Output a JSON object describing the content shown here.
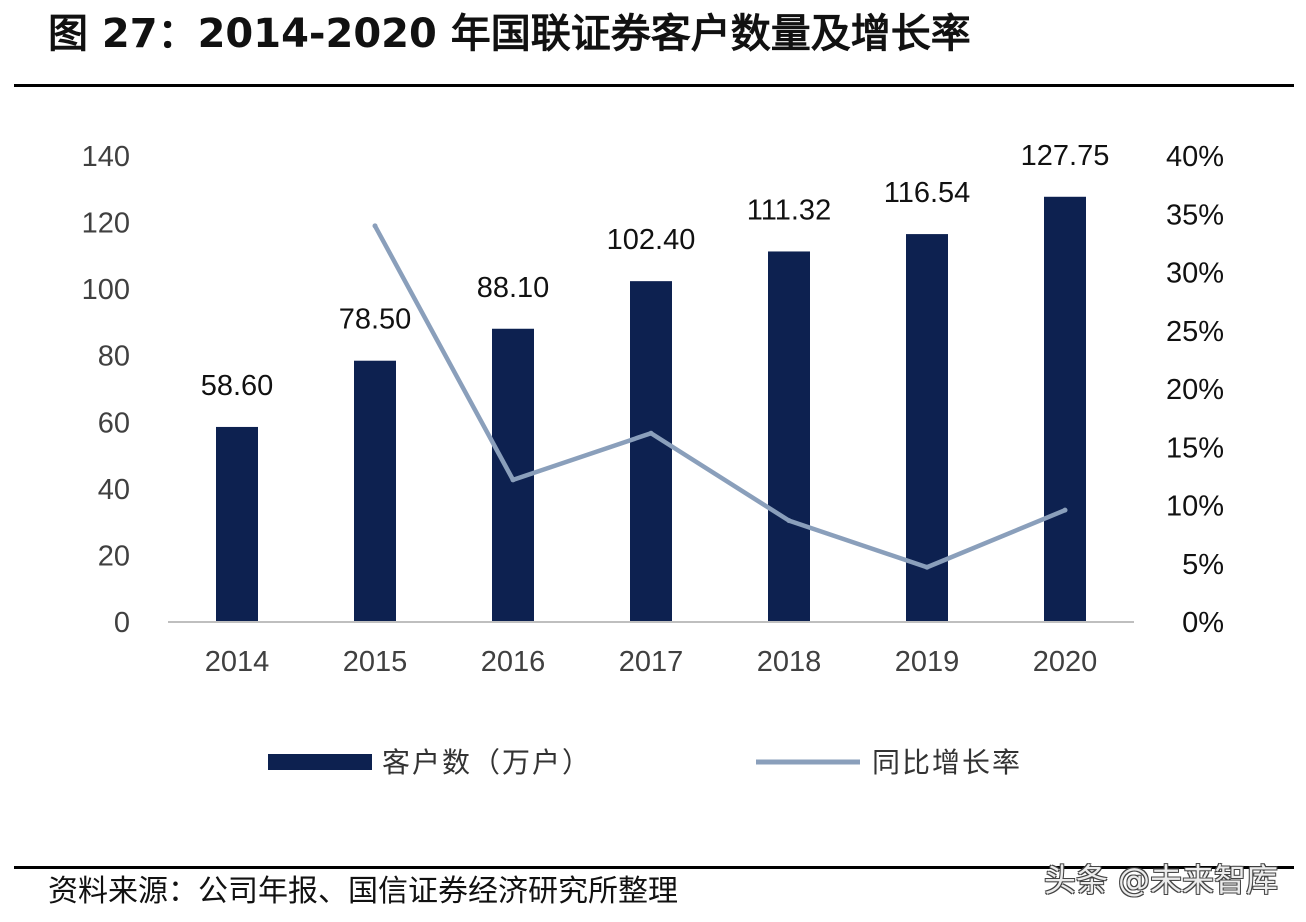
{
  "figure_title": "图 27：2014-2020 年国联证券客户数量及增长率",
  "source": "资料来源：公司年报、国信证券经济研究所整理",
  "watermark": "头条 @未来智库",
  "colors": {
    "bar": "#0d2150",
    "line": "#8a9fbb",
    "text": "#404040",
    "axis": "#bfbfbf"
  },
  "chart_data": {
    "type": "bar",
    "categories": [
      "2014",
      "2015",
      "2016",
      "2017",
      "2018",
      "2019",
      "2020"
    ],
    "series": [
      {
        "name": "客户数（万户）",
        "type": "bar",
        "axis": "left",
        "values": [
          58.6,
          78.5,
          88.1,
          102.4,
          111.32,
          116.54,
          127.75
        ],
        "labels": [
          "58.60",
          "78.50",
          "88.10",
          "102.40",
          "111.32",
          "116.54",
          "127.75"
        ]
      },
      {
        "name": "同比增长率",
        "type": "line",
        "axis": "right",
        "values": [
          null,
          0.34,
          0.122,
          0.162,
          0.087,
          0.047,
          0.096
        ]
      }
    ],
    "y_left": {
      "min": 0,
      "max": 140,
      "ticks": [
        "0",
        "20",
        "40",
        "60",
        "80",
        "100",
        "120",
        "140"
      ]
    },
    "y_right": {
      "min": 0,
      "max": 0.4,
      "ticks": [
        "0%",
        "5%",
        "10%",
        "15%",
        "20%",
        "25%",
        "30%",
        "35%",
        "40%"
      ]
    },
    "grid": false,
    "legend": "bottom"
  }
}
